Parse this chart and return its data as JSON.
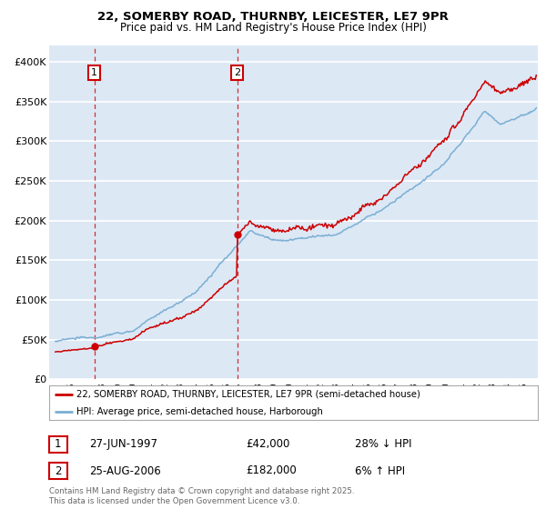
{
  "title_line1": "22, SOMERBY ROAD, THURNBY, LEICESTER, LE7 9PR",
  "title_line2": "Price paid vs. HM Land Registry's House Price Index (HPI)",
  "legend_line1": "22, SOMERBY ROAD, THURNBY, LEICESTER, LE7 9PR (semi-detached house)",
  "legend_line2": "HPI: Average price, semi-detached house, Harborough",
  "sale1_date": "27-JUN-1997",
  "sale1_price": "£42,000",
  "sale1_hpi": "28% ↓ HPI",
  "sale2_date": "25-AUG-2006",
  "sale2_price": "£182,000",
  "sale2_hpi": "6% ↑ HPI",
  "copyright": "Contains HM Land Registry data © Crown copyright and database right 2025.\nThis data is licensed under the Open Government Licence v3.0.",
  "red_color": "#cc0000",
  "blue_color": "#7aafd4",
  "bg_color": "#dde8f5",
  "grid_color": "#ffffff",
  "sale1_year": 1997.49,
  "sale1_value": 42000,
  "sale2_year": 2006.65,
  "sale2_value": 182000,
  "yticks": [
    0,
    50000,
    100000,
    150000,
    200000,
    250000,
    300000,
    350000,
    400000
  ],
  "xlim_left": 1994.6,
  "xlim_right": 2025.9
}
